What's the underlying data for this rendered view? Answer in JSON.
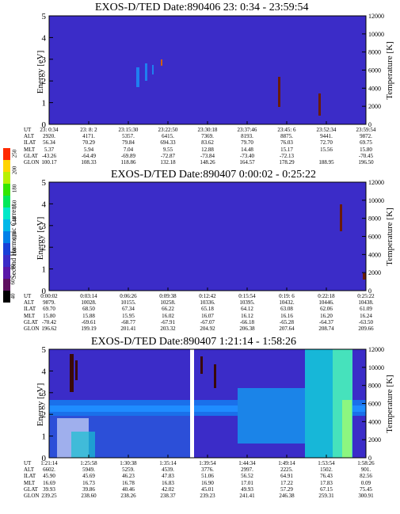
{
  "colorbar": {
    "label": "Second Harmonic Current",
    "ticks": [
      "40",
      "60",
      "80",
      "100",
      "120",
      "140",
      "160",
      "180",
      "200",
      "250"
    ]
  },
  "chart_data": [
    {
      "type": "heatmap",
      "title": "EXOS-D/TED   Date:890406  23: 0:34 - 23:59:54",
      "ylabel": "Energy [eV]",
      "y2label": "Temperature [K]",
      "ylim": [
        0,
        5
      ],
      "y2lim": [
        0,
        12000
      ],
      "yticks": [
        0,
        1,
        2,
        3,
        4,
        5
      ],
      "y2ticks": [
        0,
        2000,
        4000,
        6000,
        8000,
        10000,
        12000
      ],
      "ephemeris": {
        "rows": [
          "UT",
          "ALT",
          "ILAT",
          "MLT",
          "GLAT",
          "GLON"
        ],
        "columns": [
          [
            "23: 0:34",
            "2920.",
            "56.34",
            "5.37",
            "-43.26",
            "100.17"
          ],
          [
            "23: 8: 2",
            "4171.",
            "70.29",
            "5.94",
            "-64.49",
            "108.33"
          ],
          [
            "23:15:30",
            "5357.",
            "79.84",
            "7.04",
            "-69.89",
            "118.86"
          ],
          [
            "23:22:50",
            "6415.",
            "694.33",
            "9.55",
            "-72.87",
            "132.18"
          ],
          [
            "23:30:18",
            "7369.",
            "83.62",
            "12.88",
            "-73.84",
            "148.26"
          ],
          [
            "23:37:46",
            "8193.",
            "79.70",
            "14.48",
            "-73.40",
            "164.57"
          ],
          [
            "23:45: 6",
            "8875.",
            "76.03",
            "15.17",
            "-72.13",
            "178.29"
          ],
          [
            "23:52:34",
            "9441.",
            "72.70",
            "15.56",
            "",
            "188.95"
          ],
          [
            "23:59:54",
            "9872.",
            "69.75",
            "15.80",
            "-70.45",
            "196.50"
          ]
        ]
      }
    },
    {
      "type": "heatmap",
      "title": "EXOS-D/TED   Date:890407   0:00:02 - 0:25:22",
      "ylabel": "Energy [eV]",
      "y2label": "Temperature [K]",
      "ylim": [
        0,
        5
      ],
      "y2lim": [
        0,
        12000
      ],
      "yticks": [
        0,
        1,
        2,
        3,
        4,
        5
      ],
      "y2ticks": [
        0,
        2000,
        4000,
        6000,
        8000,
        10000,
        12000
      ],
      "ephemeris": {
        "rows": [
          "UT",
          "ALT",
          "ILAT",
          "MLT",
          "GLAT",
          "GLON"
        ],
        "columns": [
          [
            "0:00:02",
            "9879.",
            "69.70",
            "15.80",
            "-70.42",
            "196.62"
          ],
          [
            "0:03:14",
            "10028.",
            "68.50",
            "15.88",
            "-69.61",
            "199.19"
          ],
          [
            "0:06:26",
            "10155.",
            "67.34",
            "15.95",
            "-68.77",
            "201.41"
          ],
          [
            "0:09:38",
            "10258.",
            "66.22",
            "16.02",
            "-67.91",
            "203.32"
          ],
          [
            "0:12:42",
            "10336.",
            "65.18",
            "16.07",
            "-67.07",
            "204.92"
          ],
          [
            "0:15:54",
            "10395.",
            "64.12",
            "16.12",
            "-66.18",
            "206.38"
          ],
          [
            "0:19: 6",
            "10432.",
            "63.08",
            "16.16",
            "-65.28",
            "207.64"
          ],
          [
            "0:22:18",
            "10446.",
            "62.06",
            "16.20",
            "-64.37",
            "208.74"
          ],
          [
            "0:25:22",
            "10438.",
            "61.09",
            "16.24",
            "-63.50",
            "209.66"
          ]
        ]
      }
    },
    {
      "type": "heatmap",
      "title": "EXOS-D/TED   Date:890407   1:21:14 - 1:58:26",
      "ylabel": "Energy [eV]",
      "y2label": "Temperature [K]",
      "ylim": [
        0,
        5
      ],
      "y2lim": [
        0,
        12000
      ],
      "yticks": [
        0,
        1,
        2,
        3,
        4,
        5
      ],
      "y2ticks": [
        0,
        2000,
        4000,
        6000,
        8000,
        10000,
        12000
      ],
      "ephemeris": {
        "rows": [
          "UT",
          "ALT",
          "ILAT",
          "MLT",
          "GLAT",
          "GLON"
        ],
        "columns": [
          [
            "1:21:14",
            "6602.",
            "45.90",
            "16.69",
            "39.93",
            "239.25"
          ],
          [
            "1:25:58",
            "5949.",
            "45.69",
            "16.73",
            "39.86",
            "238.60"
          ],
          [
            "1:30:38",
            "5259.",
            "46.23",
            "16.78",
            "40.46",
            "238.26"
          ],
          [
            "1:35:14",
            "4539.",
            "47.83",
            "16.83",
            "42.02",
            "238.37"
          ],
          [
            "1:39:54",
            "3776.",
            "51.06",
            "16.90",
            "45.01",
            "239.23"
          ],
          [
            "1:44:34",
            "2997.",
            "56.52",
            "17.01",
            "49.93",
            "241.41"
          ],
          [
            "1:49:14",
            "2225.",
            "64.91",
            "17.22",
            "57.29",
            "246.38"
          ],
          [
            "1:53:54",
            "1502.",
            "76.43",
            "17.83",
            "67.15",
            "259.31"
          ],
          [
            "1:58:26",
            "901.",
            "82.56",
            "0.09",
            "75.45",
            "300.91"
          ]
        ]
      }
    }
  ],
  "panels": [
    {
      "title": "EXOS-D/TED   Date:890406  23: 0:34 - 23:59:54",
      "ylabel": "Energy [eV]",
      "y2label": "Temperature [K]"
    },
    {
      "title": "EXOS-D/TED   Date:890407   0:00:02 - 0:25:22",
      "ylabel": "Energy [eV]",
      "y2label": "Temperature [K]"
    },
    {
      "title": "EXOS-D/TED   Date:890407   1:21:14 - 1:58:26",
      "ylabel": "Energy [eV]",
      "y2label": "Temperature [K]"
    }
  ]
}
